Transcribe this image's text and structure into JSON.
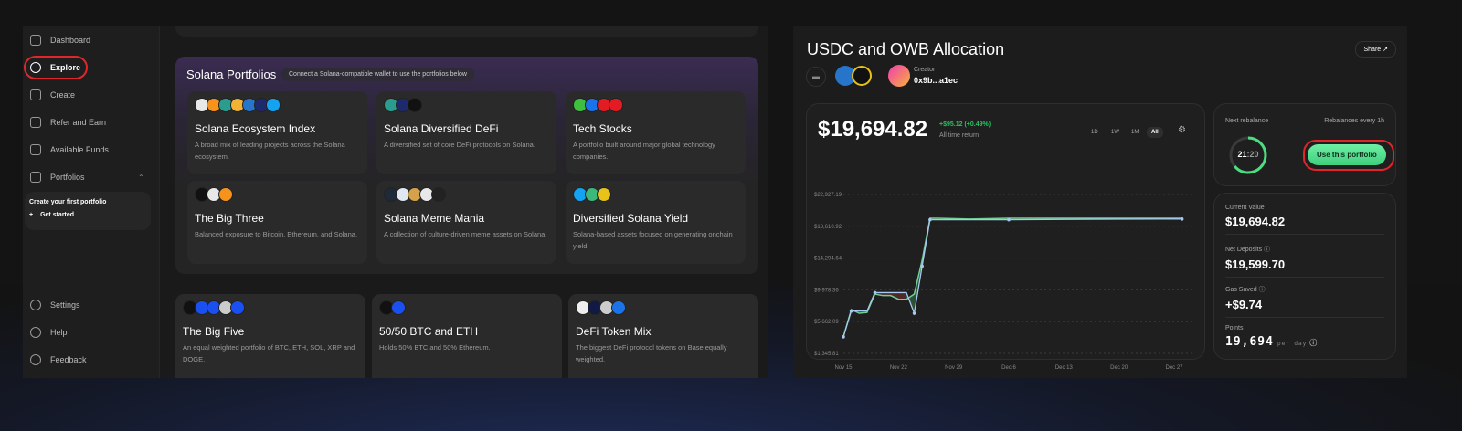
{
  "sidebar": {
    "items": [
      {
        "label": "Dashboard",
        "icon": "grid-icon"
      },
      {
        "label": "Explore",
        "icon": "globe-icon"
      },
      {
        "label": "Create",
        "icon": "sparkle-icon"
      },
      {
        "label": "Refer and Earn",
        "icon": "user-plus-icon"
      },
      {
        "label": "Available Funds",
        "icon": "wallet-icon"
      },
      {
        "label": "Portfolios",
        "icon": "folder-icon"
      }
    ],
    "sub_title": "Create your first portfolio",
    "sub_action": "Get started",
    "bottom": [
      {
        "label": "Settings",
        "icon": "gear-icon"
      },
      {
        "label": "Help",
        "icon": "lifebuoy-icon"
      },
      {
        "label": "Feedback",
        "icon": "chat-icon"
      }
    ]
  },
  "solana": {
    "title": "Solana Portfolios",
    "note": "Connect a Solana-compatible wallet to use the portfolios below",
    "cards": [
      {
        "title": "Solana Ecosystem Index",
        "desc": "A broad mix of leading projects across the Solana ecosystem.",
        "coins": [
          "#e8e8e8",
          "#f7931a",
          "#2a9d8f",
          "#f2b233",
          "#2775ca",
          "#1e2a6e",
          "#14a3f0"
        ]
      },
      {
        "title": "Solana Diversified DeFi",
        "desc": "A diversified set of core DeFi protocols on Solana.",
        "coins": [
          "#2a9d8f",
          "#1e2a6e",
          "#111111"
        ]
      },
      {
        "title": "Tech Stocks",
        "desc": "A portfolio built around major global technology companies.",
        "coins": [
          "#3fbf3f",
          "#1a73e8",
          "#e31b23",
          "#e31b23"
        ]
      },
      {
        "title": "The Big Three",
        "desc": "Balanced exposure to Bitcoin, Ethereum, and Solana.",
        "coins": [
          "#111111",
          "#e8e8e8",
          "#f7931a"
        ]
      },
      {
        "title": "Solana Meme Mania",
        "desc": "A collection of culture-driven meme assets on Solana.",
        "coins": [
          "#1e2a3a",
          "#dfe8f0",
          "#d4a24a",
          "#e8e8e8",
          "#222222"
        ]
      },
      {
        "title": "Diversified Solana Yield",
        "desc": "Solana-based assets focused on generating onchain yield.",
        "coins": [
          "#14a3f0",
          "#3bb87a",
          "#e6c21a"
        ]
      }
    ]
  },
  "other_cards": [
    {
      "title": "The Big Five",
      "desc": "An equal weighted portfolio of BTC, ETH, SOL, XRP and DOGE.",
      "coins": [
        "#111111",
        "#1a4ff0",
        "#1a4ff0",
        "#cccccc",
        "#1a4ff0"
      ]
    },
    {
      "title": "50/50 BTC and ETH",
      "desc": "Holds 50% BTC and 50% Ethereum.",
      "coins": [
        "#111111",
        "#1a4ff0"
      ]
    },
    {
      "title": "DeFi Token Mix",
      "desc": "The biggest DeFi protocol tokens on Base equally weighted.",
      "coins": [
        "#eeeeee",
        "#111a44",
        "#cccccc",
        "#1a73e8"
      ]
    }
  ],
  "detail": {
    "title": "USDC and OWB Allocation",
    "share": "Share",
    "creator_label": "Creator",
    "creator": "0x9b...a1ec",
    "value": "$19,694.82",
    "change": "+$95.12 (+0.49%)",
    "change_label": "All time return",
    "ranges": [
      "1D",
      "1W",
      "1M",
      "All"
    ],
    "active_range": "All",
    "next_rebalance_label": "Next rebalance",
    "countdown_h": "21",
    "countdown_m": "20",
    "countdown_progress": 0.64,
    "rebalance_freq": "Rebalances every 1h",
    "use_button": "Use this portfolio",
    "stats": [
      {
        "label": "Current Value",
        "value": "$19,694.82"
      },
      {
        "label": "Net Deposits",
        "value": "$19,599.70"
      },
      {
        "label": "Gas Saved",
        "value": "+$9.74"
      },
      {
        "label": "Points",
        "value": "19,694",
        "suffix": "per day"
      }
    ]
  },
  "colors": {
    "accent": "#4ade80",
    "gain": "#22c55e",
    "loss": "#7a2a2a",
    "highlight": "#e0262b"
  },
  "chart_data": {
    "type": "line",
    "yticks": [
      "$22,927.19",
      "$18,610.92",
      "$14,294.64",
      "$9,978.36",
      "$5,662.09",
      "$1,345.81"
    ],
    "ylim": [
      1345.81,
      22927.19
    ],
    "xticks": [
      "Nov 15",
      "Nov 22",
      "Nov 29",
      "Dec 6",
      "Dec 13",
      "Dec 20",
      "Dec 27"
    ],
    "x": [
      "Nov 15",
      "Nov 16",
      "Nov 17",
      "Nov 18",
      "Nov 19",
      "Nov 20",
      "Nov 21",
      "Nov 22",
      "Nov 23",
      "Nov 24",
      "Nov 25",
      "Nov 26",
      "Nov 27",
      "Dec 1",
      "Dec 6",
      "Dec 13",
      "Dec 20",
      "Dec 27",
      "Dec 28"
    ],
    "series": [
      {
        "values": [
          3600,
          7300,
          6800,
          6900,
          9400,
          9200,
          9200,
          8700,
          8700,
          9400,
          14000,
          19700,
          19700,
          19600,
          19700,
          19700,
          19700,
          19700,
          19695
        ]
      },
      {
        "values": [
          3600,
          7100,
          7100,
          7100,
          9600,
          9600,
          9600,
          9600,
          9600,
          6800,
          13200,
          19500,
          19500,
          19500,
          19500,
          19550,
          19580,
          19600,
          19600
        ]
      }
    ]
  }
}
